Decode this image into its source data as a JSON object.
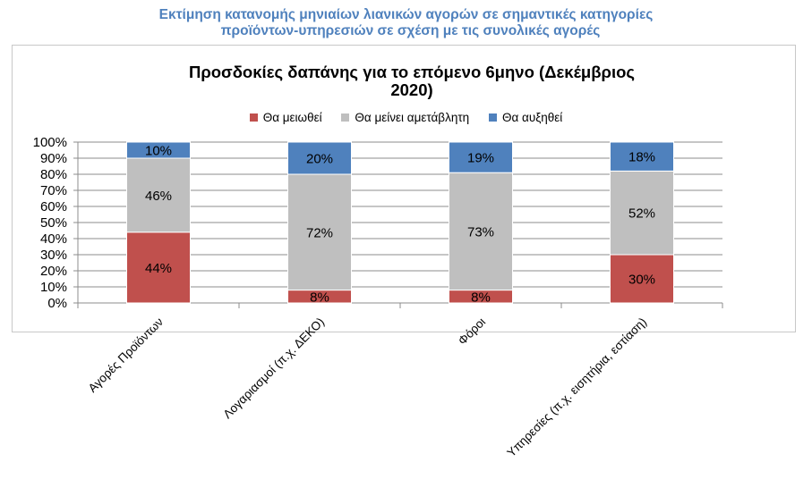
{
  "heading": {
    "line1": "Εκτίμηση κατανομής μηνιαίων λιανικών αγορών σε σημαντικές κατηγορίες",
    "line2": "προϊόντων-υπηρεσιών σε σχέση με τις συνολικές αγορές"
  },
  "chart_data": {
    "type": "bar",
    "stacked": true,
    "title_line1": "Προσδοκίες δαπάνης για το επόμενο 6μηνο (Δεκέμβριος",
    "title_line2": "2020)",
    "categories": [
      "Αγορές Προϊόντων",
      "Λογαριασμοί (π.χ. ΔΕΚΟ)",
      "Φόροι",
      "Υπηρεσίες (π.χ. εισητήρια, εστίαση)"
    ],
    "series": [
      {
        "name": "Θα μειωθεί",
        "color": "#c0504d",
        "values": [
          44,
          8,
          8,
          30
        ],
        "labels": [
          "44%",
          "8%",
          "8%",
          "30%"
        ]
      },
      {
        "name": "Θα μείνει αμετάβλητη",
        "color": "#bfbfbf",
        "values": [
          46,
          72,
          73,
          52
        ],
        "labels": [
          "46%",
          "72%",
          "73%",
          "52%"
        ]
      },
      {
        "name": "Θα αυξηθεί",
        "color": "#4f81bd",
        "values": [
          10,
          20,
          19,
          18
        ],
        "labels": [
          "10%",
          "20%",
          "19%",
          "18%"
        ]
      }
    ],
    "y_ticks": [
      "0%",
      "10%",
      "20%",
      "30%",
      "40%",
      "50%",
      "60%",
      "70%",
      "80%",
      "90%",
      "100%"
    ],
    "ylim": [
      0,
      100
    ],
    "grid": true,
    "legend_position": "top"
  }
}
